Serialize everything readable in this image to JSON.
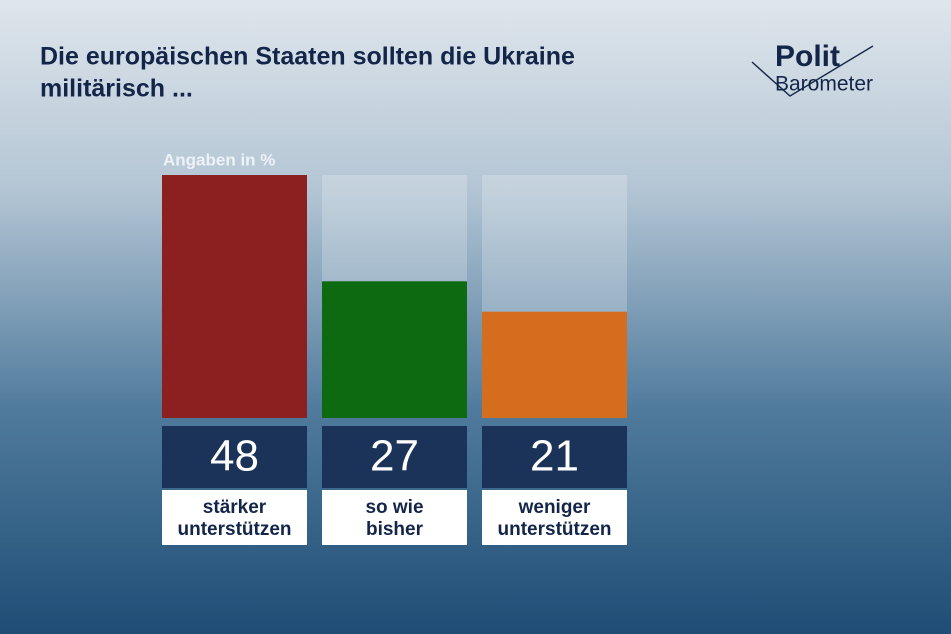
{
  "chart_data": {
    "type": "bar",
    "title": [
      "Die europäischen Staaten sollten die Ukraine",
      "militärisch ..."
    ],
    "subtitle": "Angaben in %",
    "logo": [
      "Polit",
      "Barometer"
    ],
    "categories": [
      [
        "stärker",
        "unterstützen"
      ],
      [
        "so wie",
        "bisher"
      ],
      [
        "weniger",
        "unterstützen"
      ]
    ],
    "values": [
      48,
      27,
      21
    ],
    "colors": [
      "#8c1f1f",
      "#0e6a10",
      "#d56d1e"
    ]
  }
}
